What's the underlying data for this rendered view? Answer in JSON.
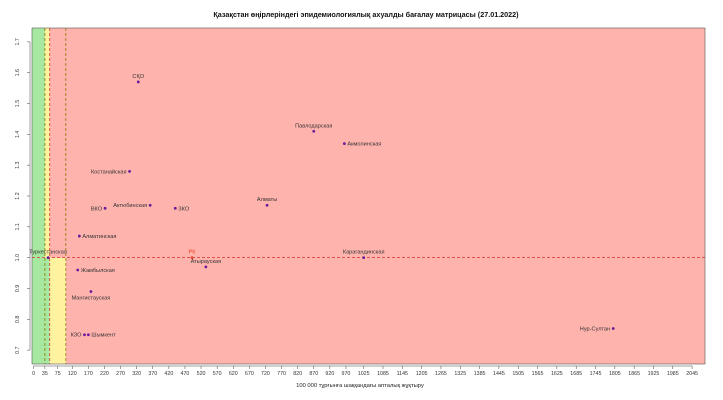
{
  "chart_data": {
    "type": "scatter",
    "title": "Қазақстан өңірлеріндегі эпидемиологиялық ахуалды бағалау матрицасы  (27.01.2022)",
    "xlabel": "100 000 тұрғынға шаққандағы апталық жұқтыру",
    "ylabel": "",
    "xlim": [
      -5,
      2085
    ],
    "ylim": [
      0.655,
      1.745
    ],
    "x_ticks": [
      0,
      35,
      75,
      120,
      170,
      220,
      270,
      320,
      370,
      420,
      470,
      520,
      570,
      620,
      670,
      720,
      770,
      820,
      870,
      920,
      970,
      1025,
      1085,
      1145,
      1205,
      1265,
      1325,
      1385,
      1445,
      1505,
      1565,
      1625,
      1685,
      1745,
      1805,
      1865,
      1925,
      1985,
      2045
    ],
    "y_ticks": [
      0.7,
      0.8,
      0.9,
      1.0,
      1.1,
      1.2,
      1.3,
      1.4,
      1.5,
      1.6,
      1.7
    ],
    "grid": false,
    "zones": [
      {
        "x0": -5,
        "x1": 35,
        "y0": 0.655,
        "y1": 1.745,
        "color": "#a6e8a0"
      },
      {
        "x0": 35,
        "x1": 50,
        "y0": 1.0,
        "y1": 1.745,
        "color": "#fff3a0"
      },
      {
        "x0": 35,
        "x1": 50,
        "y0": 0.655,
        "y1": 1.0,
        "color": "#a6e8a0"
      },
      {
        "x0": 50,
        "x1": 100,
        "y0": 0.655,
        "y1": 1.0,
        "color": "#fff3a0"
      },
      {
        "x0": 50,
        "x1": 2085,
        "y0": 1.0,
        "y1": 1.745,
        "color": "#ffb3ad"
      },
      {
        "x0": 100,
        "x1": 2085,
        "y0": 0.655,
        "y1": 1.0,
        "color": "#ffb3ad"
      }
    ],
    "reference_lines": [
      {
        "orientation": "h",
        "value": 1.0,
        "color": "#d9322b"
      },
      {
        "orientation": "v",
        "value": 50,
        "color": "#d9322b"
      },
      {
        "orientation": "v",
        "value": 35,
        "color": "#8a7a00"
      },
      {
        "orientation": "v",
        "value": 100,
        "color": "#8a7a00"
      }
    ],
    "points": [
      {
        "label": "СҚО",
        "x": 325,
        "y": 1.57,
        "anchor": "above"
      },
      {
        "label": "Павлодарская",
        "x": 870,
        "y": 1.41,
        "anchor": "above"
      },
      {
        "label": "Акмолинская",
        "x": 965,
        "y": 1.37,
        "anchor": "right"
      },
      {
        "label": "Костанайская",
        "x": 298,
        "y": 1.28,
        "anchor": "left"
      },
      {
        "label": "Алматы",
        "x": 725,
        "y": 1.17,
        "anchor": "above"
      },
      {
        "label": "ВКО",
        "x": 222,
        "y": 1.16,
        "anchor": "left"
      },
      {
        "label": "Актюбинская",
        "x": 362,
        "y": 1.17,
        "anchor": "left"
      },
      {
        "label": "ЗКО",
        "x": 440,
        "y": 1.16,
        "anchor": "right"
      },
      {
        "label": "Алматинская",
        "x": 142,
        "y": 1.07,
        "anchor": "right"
      },
      {
        "label": "Туркестанская",
        "x": 45,
        "y": 1.0,
        "anchor": "above"
      },
      {
        "label": "РК",
        "x": 492,
        "y": 1.0,
        "anchor": "above",
        "highlight": true,
        "color": "#e8442c"
      },
      {
        "label": "Карагандинская",
        "x": 1025,
        "y": 1.0,
        "anchor": "above"
      },
      {
        "label": "Атырауская",
        "x": 535,
        "y": 0.97,
        "anchor": "above"
      },
      {
        "label": "Жамбылская",
        "x": 137,
        "y": 0.96,
        "anchor": "right"
      },
      {
        "label": "Мангистауская",
        "x": 178,
        "y": 0.89,
        "anchor": "below"
      },
      {
        "label": "КЗО",
        "x": 158,
        "y": 0.75,
        "anchor": "left"
      },
      {
        "label": "Шымкент",
        "x": 170,
        "y": 0.75,
        "anchor": "right"
      },
      {
        "label": "Нур-Султан",
        "x": 1800,
        "y": 0.77,
        "anchor": "left"
      }
    ],
    "point_color": "#6a1b9a"
  }
}
